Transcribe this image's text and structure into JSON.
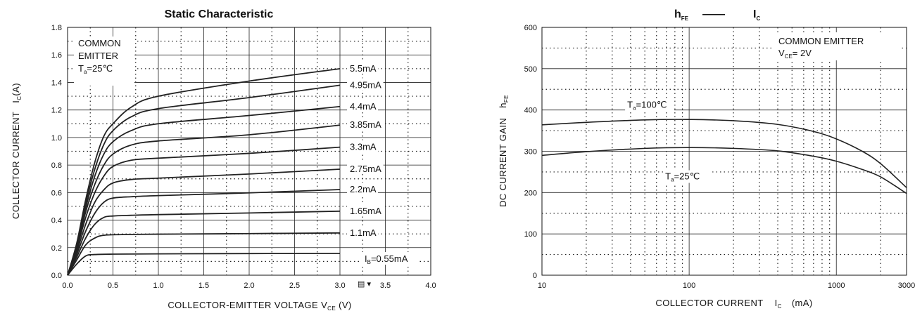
{
  "chart_data": [
    {
      "type": "line",
      "title": "Static Characteristic",
      "xlabel": "COLLECTOR-EMITTER VOLTAGE V",
      "xlabel_sub": "CE",
      "xlabel_unit": " (V)",
      "ylabel": "COLLECTOR CURRENT",
      "ylabel_sym": "I",
      "ylabel_sub": "C",
      "ylabel_unit": "(A)",
      "xlim": [
        0,
        4.0
      ],
      "ylim": [
        0,
        1.8
      ],
      "x_ticks": [
        "0.0",
        "0.5",
        "1.0",
        "1.5",
        "2.0",
        "2.5",
        "3.0",
        "3.5",
        "4.0"
      ],
      "y_ticks": [
        "0.0",
        "0.2",
        "0.4",
        "0.6",
        "0.8",
        "1.0",
        "1.2",
        "1.4",
        "1.6",
        "1.8"
      ],
      "grid": true,
      "notes": {
        "line1": "COMMON",
        "line2": "EMITTER",
        "temp_sym": "T",
        "temp_sub": "a",
        "temp_val": "=25",
        "temp_unit": "℃"
      },
      "series": [
        {
          "name": "IB=0.55mA",
          "label_sym": "I",
          "label_sub": "B",
          "label_val": "=0.55mA",
          "values": [
            [
              0,
              0
            ],
            [
              0.1,
              0.08
            ],
            [
              0.2,
              0.14
            ],
            [
              0.3,
              0.15
            ],
            [
              0.5,
              0.153
            ],
            [
              1.0,
              0.155
            ],
            [
              2.0,
              0.157
            ],
            [
              3.0,
              0.158
            ]
          ]
        },
        {
          "name": "1.1mA",
          "values": [
            [
              0,
              0
            ],
            [
              0.1,
              0.11
            ],
            [
              0.2,
              0.22
            ],
            [
              0.3,
              0.27
            ],
            [
              0.4,
              0.29
            ],
            [
              0.6,
              0.295
            ],
            [
              1.0,
              0.298
            ],
            [
              2.0,
              0.302
            ],
            [
              3.0,
              0.307
            ]
          ]
        },
        {
          "name": "1.65mA",
          "values": [
            [
              0,
              0
            ],
            [
              0.1,
              0.13
            ],
            [
              0.2,
              0.27
            ],
            [
              0.3,
              0.37
            ],
            [
              0.4,
              0.42
            ],
            [
              0.5,
              0.43
            ],
            [
              0.7,
              0.435
            ],
            [
              1.0,
              0.44
            ],
            [
              2.0,
              0.452
            ],
            [
              3.0,
              0.465
            ]
          ]
        },
        {
          "name": "2.2mA",
          "values": [
            [
              0,
              0
            ],
            [
              0.1,
              0.15
            ],
            [
              0.2,
              0.32
            ],
            [
              0.3,
              0.45
            ],
            [
              0.4,
              0.53
            ],
            [
              0.5,
              0.56
            ],
            [
              0.7,
              0.57
            ],
            [
              1.0,
              0.578
            ],
            [
              2.0,
              0.598
            ],
            [
              3.0,
              0.622
            ]
          ]
        },
        {
          "name": "2.75mA",
          "values": [
            [
              0,
              0
            ],
            [
              0.1,
              0.17
            ],
            [
              0.2,
              0.37
            ],
            [
              0.3,
              0.53
            ],
            [
              0.4,
              0.62
            ],
            [
              0.5,
              0.67
            ],
            [
              0.7,
              0.695
            ],
            [
              1.0,
              0.705
            ],
            [
              2.0,
              0.735
            ],
            [
              3.0,
              0.77
            ]
          ]
        },
        {
          "name": "3.3mA",
          "values": [
            [
              0,
              0
            ],
            [
              0.1,
              0.19
            ],
            [
              0.2,
              0.42
            ],
            [
              0.3,
              0.6
            ],
            [
              0.4,
              0.72
            ],
            [
              0.5,
              0.79
            ],
            [
              0.7,
              0.835
            ],
            [
              1.0,
              0.85
            ],
            [
              2.0,
              0.885
            ],
            [
              3.0,
              0.93
            ]
          ]
        },
        {
          "name": "3.85mA",
          "values": [
            [
              0,
              0
            ],
            [
              0.1,
              0.2
            ],
            [
              0.2,
              0.46
            ],
            [
              0.3,
              0.66
            ],
            [
              0.4,
              0.8
            ],
            [
              0.5,
              0.88
            ],
            [
              0.7,
              0.945
            ],
            [
              1.0,
              0.975
            ],
            [
              2.0,
              1.02
            ],
            [
              3.0,
              1.09
            ]
          ]
        },
        {
          "name": "4.4mA",
          "values": [
            [
              0,
              0
            ],
            [
              0.1,
              0.21
            ],
            [
              0.2,
              0.49
            ],
            [
              0.3,
              0.72
            ],
            [
              0.4,
              0.88
            ],
            [
              0.5,
              0.97
            ],
            [
              0.7,
              1.05
            ],
            [
              1.0,
              1.1
            ],
            [
              2.0,
              1.16
            ],
            [
              3.0,
              1.225
            ]
          ]
        },
        {
          "name": "4.95mA",
          "values": [
            [
              0,
              0
            ],
            [
              0.1,
              0.22
            ],
            [
              0.2,
              0.52
            ],
            [
              0.3,
              0.77
            ],
            [
              0.4,
              0.95
            ],
            [
              0.5,
              1.05
            ],
            [
              0.7,
              1.15
            ],
            [
              1.0,
              1.21
            ],
            [
              2.0,
              1.29
            ],
            [
              3.0,
              1.38
            ]
          ]
        },
        {
          "name": "5.5mA",
          "values": [
            [
              0,
              0
            ],
            [
              0.1,
              0.23
            ],
            [
              0.2,
              0.55
            ],
            [
              0.3,
              0.82
            ],
            [
              0.4,
              1.01
            ],
            [
              0.5,
              1.1
            ],
            [
              0.7,
              1.22
            ],
            [
              1.0,
              1.3
            ],
            [
              2.0,
              1.41
            ],
            [
              3.0,
              1.5
            ]
          ]
        }
      ],
      "extra_tick": "▤ ▾"
    },
    {
      "type": "line",
      "title_h": "h",
      "title_h_sub": "FE",
      "title_dash": "——",
      "title_i": "I",
      "title_i_sub": "C",
      "xlabel": "COLLECTOR CURRENT",
      "xlabel_sym": "I",
      "xlabel_sub": "C",
      "xlabel_unit": "(mA)",
      "ylabel": "DC CURRENT GAIN",
      "ylabel_sym": "h",
      "ylabel_sub": "FE",
      "xscale": "log",
      "xlim": [
        10,
        3000
      ],
      "ylim": [
        0,
        600
      ],
      "x_ticks": [
        "10",
        "100",
        "1000",
        "3000"
      ],
      "y_ticks": [
        "0",
        "100",
        "200",
        "300",
        "400",
        "500",
        "600"
      ],
      "grid": true,
      "notes": {
        "line1": "COMMON EMITTER",
        "v_sym": "V",
        "v_sub": "CE",
        "v_val": "= 2V"
      },
      "series": [
        {
          "name": "Ta=100℃",
          "label_sym": "T",
          "label_sub": "a",
          "label_val": "=100",
          "label_unit": "℃",
          "values": [
            [
              10,
              364
            ],
            [
              20,
              370
            ],
            [
              50,
              376
            ],
            [
              100,
              377
            ],
            [
              200,
              374
            ],
            [
              400,
              365
            ],
            [
              700,
              348
            ],
            [
              1000,
              330
            ],
            [
              1500,
              300
            ],
            [
              2000,
              270
            ],
            [
              3000,
              212
            ]
          ]
        },
        {
          "name": "Ta=25℃",
          "label_sym": "T",
          "label_sub": "a",
          "label_val": "=25",
          "label_unit": "℃",
          "values": [
            [
              10,
              290
            ],
            [
              20,
              299
            ],
            [
              50,
              307
            ],
            [
              100,
              309
            ],
            [
              200,
              307
            ],
            [
              400,
              301
            ],
            [
              700,
              288
            ],
            [
              1000,
              276
            ],
            [
              1500,
              256
            ],
            [
              2000,
              238
            ],
            [
              3000,
              198
            ]
          ]
        }
      ]
    }
  ]
}
